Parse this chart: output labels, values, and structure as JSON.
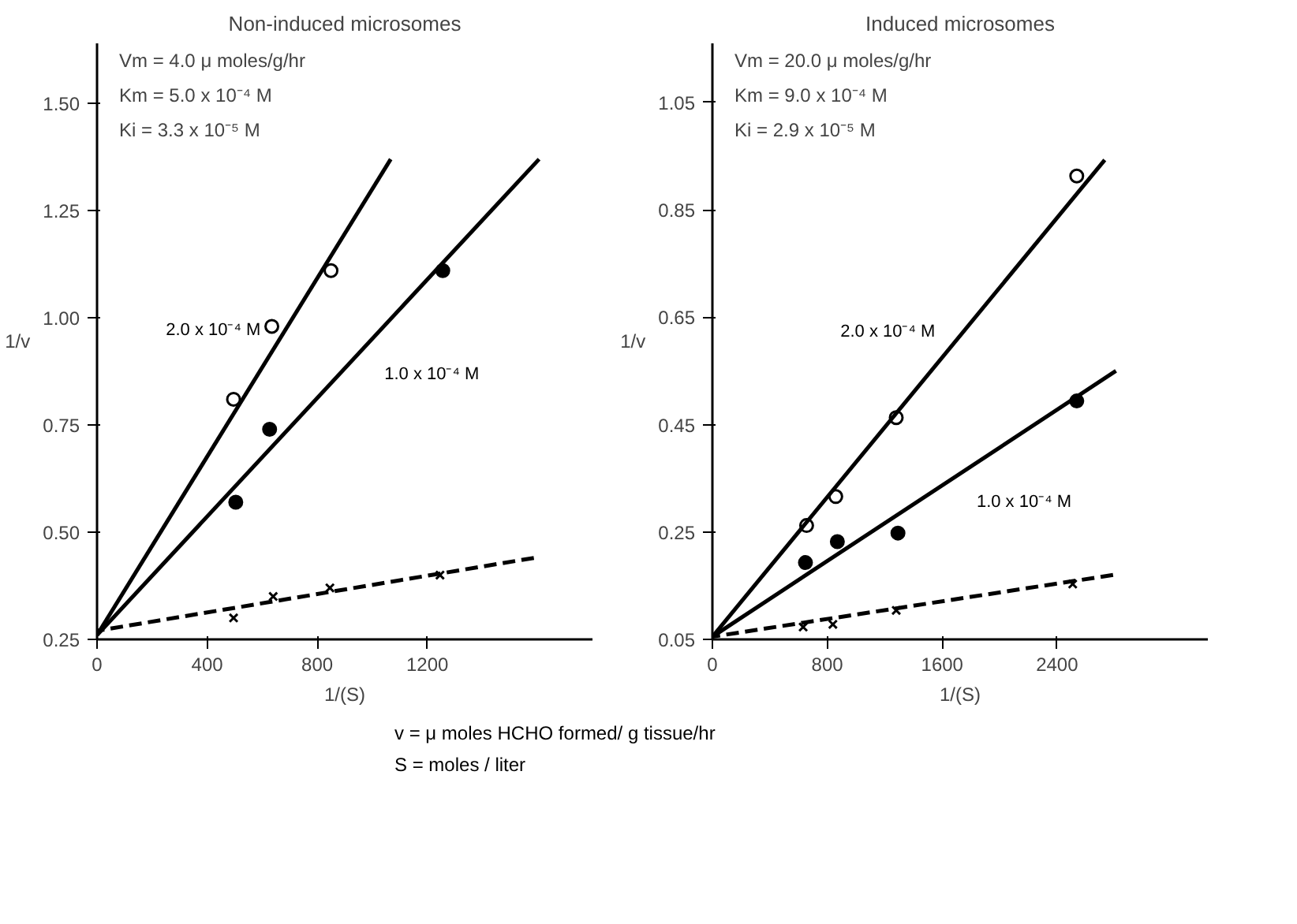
{
  "chart_data": [
    {
      "type": "scatter",
      "title": "Non-induced microsomes",
      "xlabel": "1/(S)",
      "ylabel": "1/v",
      "xlim": [
        0,
        1800
      ],
      "ylim": [
        0.25,
        1.64
      ],
      "xticks": [
        0,
        400,
        800,
        1200
      ],
      "yticks": [
        {
          "value": 0.25,
          "label": "0.25"
        },
        {
          "value": 0.5,
          "label": "0.50"
        },
        {
          "value": 0.75,
          "label": "0.75"
        },
        {
          "value": 1.0,
          "label": "1.00"
        },
        {
          "value": 1.25,
          "label": "1.25"
        },
        {
          "value": 1.5,
          "label": "1.50"
        }
      ],
      "grid": false,
      "series": [
        {
          "type": "scatter",
          "marker": "circle",
          "color": "#ffffff",
          "x": [
            496,
            635,
            850
          ],
          "values": [
            0.81,
            0.98,
            1.11
          ]
        },
        {
          "type": "scatter",
          "marker": "circle",
          "color": "#000000",
          "x": [
            504,
            627,
            1256
          ],
          "values": [
            0.57,
            0.74,
            1.11
          ]
        },
        {
          "type": "scatter",
          "marker": "cross",
          "color": "#000000",
          "x": [
            496,
            640,
            846,
            1246
          ],
          "values": [
            0.3,
            0.35,
            0.37,
            0.4
          ]
        },
        {
          "type": "line",
          "name": "2.0 x 10⁻⁴ M",
          "line_style": "solid",
          "color": "#000000",
          "x": [
            0,
            1067
          ],
          "values": [
            0.26,
            1.37
          ]
        },
        {
          "type": "line",
          "name": "1.0 x 10⁻⁴ M",
          "line_style": "solid",
          "color": "#000000",
          "x": [
            0,
            1606
          ],
          "values": [
            0.26,
            1.37
          ]
        },
        {
          "type": "line",
          "line_style": "dashed",
          "color": "#000000",
          "x": [
            0,
            1587
          ],
          "values": [
            0.27,
            0.44
          ]
        }
      ],
      "annotations": [
        "Vm = 4.0 μ moles/g/hr",
        "Km = 5.0 x 10⁻⁴ M",
        "Ki = 3.3 x 10⁻⁵ M"
      ]
    },
    {
      "type": "scatter",
      "title": "Induced microsomes",
      "xlabel": "1/(S)",
      "ylabel": "1/v",
      "xlim": [
        0,
        3450
      ],
      "ylim": [
        0.05,
        1.16
      ],
      "xticks": [
        0,
        800,
        1600,
        2400
      ],
      "yticks": [
        0.05,
        0.25,
        0.45,
        0.65,
        0.85,
        1.05
      ],
      "grid": false,
      "series": [
        {
          "type": "scatter",
          "marker": "circle",
          "color": "#ffffff",
          "x": [
            656,
            859,
            1280,
            2537
          ],
          "values": [
            0.262,
            0.316,
            0.463,
            0.913
          ]
        },
        {
          "type": "scatter",
          "marker": "circle",
          "color": "#000000",
          "x": [
            648,
            870,
            1292,
            2537
          ],
          "values": [
            0.193,
            0.232,
            0.248,
            0.494
          ]
        },
        {
          "type": "scatter",
          "marker": "cross",
          "color": "#000000",
          "x": [
            632,
            839,
            1280,
            2509
          ],
          "values": [
            0.073,
            0.078,
            0.104,
            0.153
          ]
        },
        {
          "type": "line",
          "name": "2.0 x 10⁻⁴ M",
          "line_style": "solid",
          "color": "#000000",
          "x": [
            0,
            2732
          ],
          "values": [
            0.055,
            0.943
          ]
        },
        {
          "type": "line",
          "name": "1.0 x 10⁻⁴ M",
          "line_style": "solid",
          "color": "#000000",
          "x": [
            0,
            2810
          ],
          "values": [
            0.055,
            0.55
          ]
        },
        {
          "type": "line",
          "line_style": "dashed",
          "color": "#000000",
          "x": [
            0,
            2790
          ],
          "values": [
            0.055,
            0.17
          ]
        }
      ],
      "annotations": [
        "Vm = 20.0 μ moles/g/hr",
        "Km = 9.0 x 10⁻⁴ M",
        "Ki = 2.9 x 10⁻⁵ M"
      ]
    },
    {
      "type": "other",
      "annotations": [
        "v = μ moles HCHO formed/ g tissue/hr",
        "S = moles / liter"
      ]
    }
  ]
}
